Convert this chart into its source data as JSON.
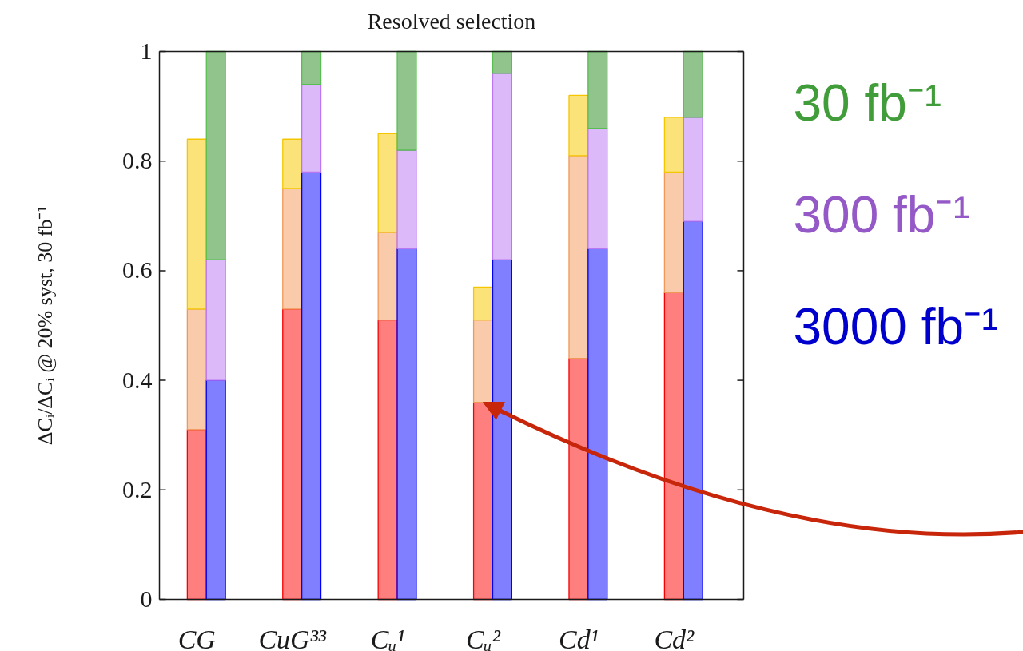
{
  "chart_data": {
    "type": "bar",
    "title": "Resolved selection",
    "ylabel": "ΔCᵢ/ΔCᵢ @ 20% syst, 30 fb⁻¹",
    "legend": "right",
    "stacked": true,
    "categories": [
      "CG",
      null,
      null,
      null,
      null,
      "CuG³³",
      null,
      null,
      null,
      null,
      "Cᵤ¹",
      null,
      null,
      null,
      null,
      "Cᵤ²",
      null,
      null,
      null,
      null,
      "Cd¹",
      null,
      null,
      null,
      null,
      "Cd²",
      null
    ],
    "ylim": [
      0,
      1
    ],
    "yticks": [
      0,
      0.2,
      0.4,
      0.6,
      0.8,
      1
    ],
    "series": [
      {
        "color": "#ff7f7f",
        "values": [
          0.31,
          null,
          null,
          null,
          null,
          0.53,
          null,
          null,
          null,
          null,
          0.51,
          null,
          null,
          null,
          null,
          0.36,
          null,
          null,
          null,
          null,
          0.44,
          null,
          null,
          null,
          null,
          0.56,
          null
        ]
      },
      {
        "color": "#f9cbaa",
        "values": [
          0.22,
          null,
          null,
          null,
          null,
          0.22,
          null,
          null,
          null,
          null,
          0.16,
          null,
          null,
          null,
          null,
          0.15,
          null,
          null,
          null,
          null,
          0.37,
          null,
          null,
          null,
          null,
          0.22,
          null
        ]
      },
      {
        "color": "#fbe37a",
        "values": [
          0.31,
          null,
          null,
          null,
          null,
          0.09,
          null,
          null,
          null,
          null,
          0.18,
          null,
          null,
          null,
          null,
          0.06,
          null,
          null,
          null,
          null,
          0.11,
          null,
          null,
          null,
          null,
          0.1,
          null
        ]
      },
      {
        "name": "3000 fb⁻¹",
        "color": "#7f7fff",
        "values": [
          null,
          0.4,
          null,
          null,
          null,
          null,
          0.78,
          null,
          null,
          null,
          null,
          0.64,
          null,
          null,
          null,
          null,
          0.62,
          null,
          null,
          null,
          null,
          0.64,
          null,
          null,
          null,
          null,
          0.69
        ]
      },
      {
        "name": "300 fb⁻¹",
        "color": "#dcbaf9",
        "values": [
          null,
          0.22,
          null,
          null,
          null,
          null,
          0.16,
          null,
          null,
          null,
          null,
          0.18,
          null,
          null,
          null,
          null,
          0.34,
          null,
          null,
          null,
          null,
          0.22,
          null,
          null,
          null,
          null,
          0.19
        ]
      },
      {
        "name": "30 fb⁻¹",
        "color": "#90c48c",
        "values": [
          null,
          0.38,
          null,
          null,
          null,
          null,
          0.06,
          null,
          null,
          null,
          null,
          0.18,
          null,
          null,
          null,
          null,
          0.04,
          null,
          null,
          null,
          null,
          0.14,
          null,
          null,
          null,
          null,
          0.12
        ]
      }
    ],
    "annotations": [
      {
        "x": "Cᵤ²"
      }
    ]
  }
}
